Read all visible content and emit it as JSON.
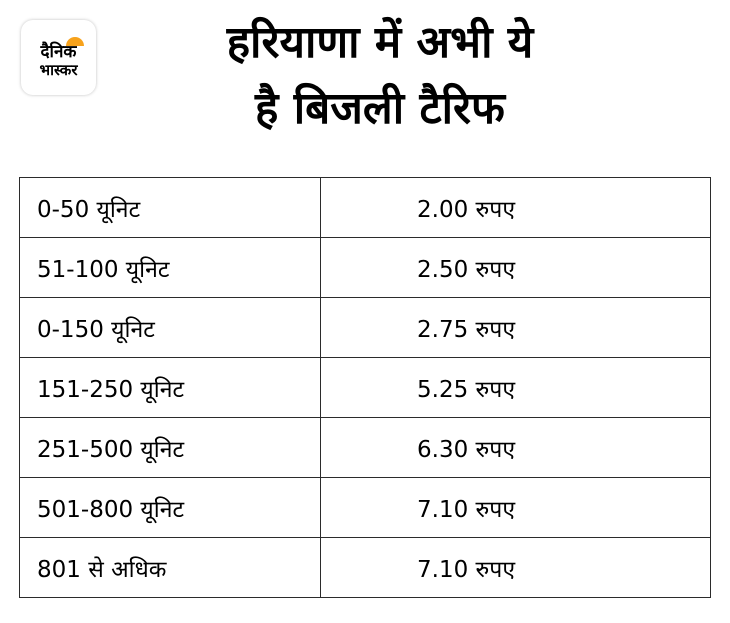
{
  "logo": {
    "line1": "दैनिक",
    "line2": "भास्कर",
    "accent_color": "#f7a21b"
  },
  "title": {
    "line1": "हरियाणा में अभी ये",
    "line2": "है बिजली टैरिफ"
  },
  "tariff": {
    "rows": [
      {
        "units": "0-50 यूनिट",
        "rate": "2.00 रुपए"
      },
      {
        "units": "51-100 यूनिट",
        "rate": "2.50 रुपए"
      },
      {
        "units": "0-150 यूनिट",
        "rate": "2.75 रुपए"
      },
      {
        "units": "151-250 यूनिट",
        "rate": "5.25 रुपए"
      },
      {
        "units": "251-500 यूनिट",
        "rate": "6.30 रुपए"
      },
      {
        "units": "501-800 यूनिट",
        "rate": "7.10 रुपए"
      },
      {
        "units": "801 से अधिक",
        "rate": "7.10 रुपए"
      }
    ]
  }
}
